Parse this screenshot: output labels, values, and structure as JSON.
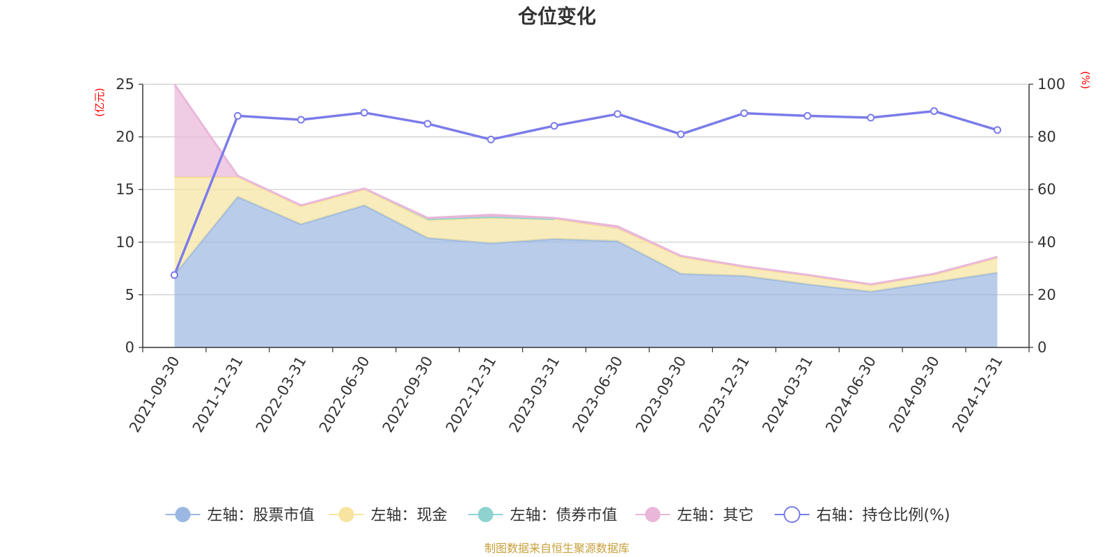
{
  "chart_data": {
    "type": "area",
    "title": "仓位变化",
    "left_unit": "(亿元)",
    "right_unit": "(%)",
    "categories": [
      "2021-09-30",
      "2021-12-31",
      "2022-03-31",
      "2022-06-30",
      "2022-09-30",
      "2022-12-31",
      "2023-03-31",
      "2023-06-30",
      "2023-09-30",
      "2023-12-31",
      "2024-03-31",
      "2024-06-30",
      "2024-09-30",
      "2024-12-31"
    ],
    "ylim_left": [
      0,
      25
    ],
    "yticks_left": [
      "0",
      "5",
      "10",
      "15",
      "20",
      "25"
    ],
    "ylim_right": [
      0,
      100
    ],
    "yticks_right": [
      "0",
      "20",
      "40",
      "60",
      "80",
      "100"
    ],
    "stacked": true,
    "grid": true,
    "legend_position": "bottom",
    "series": [
      {
        "name": "左轴：股票市值",
        "axis": "left",
        "type": "area",
        "color": "#9bb8e2",
        "values": [
          6.9,
          14.3,
          11.7,
          13.5,
          10.4,
          9.9,
          10.3,
          10.1,
          7.0,
          6.8,
          6.0,
          5.3,
          6.2,
          7.1
        ]
      },
      {
        "name": "左轴：现金",
        "axis": "left",
        "type": "area",
        "color": "#f7e4a0",
        "values": [
          9.3,
          1.9,
          1.7,
          1.5,
          1.7,
          2.4,
          1.9,
          1.2,
          1.6,
          0.8,
          0.8,
          0.6,
          0.7,
          1.4
        ]
      },
      {
        "name": "左轴：债券市值",
        "axis": "left",
        "type": "area",
        "color": "#8fd3d1",
        "values": [
          0,
          0,
          0,
          0,
          0.1,
          0.1,
          0,
          0,
          0,
          0,
          0,
          0,
          0,
          0
        ]
      },
      {
        "name": "左轴：其它",
        "axis": "left",
        "type": "area",
        "color": "#e9b7d9",
        "values": [
          8.8,
          0.1,
          0.1,
          0.1,
          0.1,
          0.2,
          0.1,
          0.2,
          0.1,
          0.1,
          0.1,
          0.1,
          0.1,
          0.1
        ]
      },
      {
        "name": "右轴：持仓比例(%)",
        "axis": "right",
        "type": "line",
        "color": "#7b7bea",
        "values": [
          27.5,
          88.0,
          86.5,
          89.2,
          85.0,
          79.0,
          84.2,
          88.7,
          81.0,
          89.0,
          88.0,
          87.3,
          89.8,
          82.6
        ]
      }
    ]
  },
  "source_note": "制图数据来自恒生聚源数据库"
}
